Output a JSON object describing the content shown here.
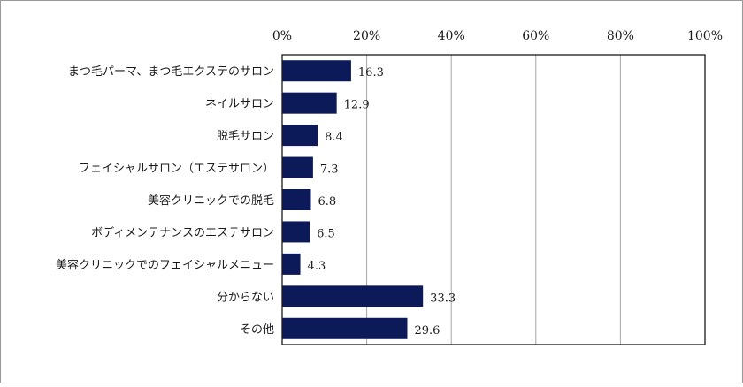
{
  "chart_data": {
    "type": "bar",
    "orientation": "horizontal",
    "title": "",
    "xlabel": "",
    "ylabel": "",
    "xlim": [
      0,
      100
    ],
    "x_ticks": [
      0,
      20,
      40,
      60,
      80,
      100
    ],
    "x_tick_labels": [
      "0%",
      "20%",
      "40%",
      "60%",
      "80%",
      "100%"
    ],
    "grid": true,
    "legend": "none",
    "bar_color": "#0d1a5a",
    "categories": [
      "まつ毛パーマ、まつ毛エクステのサロン",
      "ネイルサロン",
      "脱毛サロン",
      "フェイシャルサロン（エステサロン）",
      "美容クリニックでの脱毛",
      "ボディメンテナンスのエステサロン",
      "美容クリニックでのフェイシャルメニュー",
      "分からない",
      "その他"
    ],
    "values": [
      16.3,
      12.9,
      8.4,
      7.3,
      6.8,
      6.5,
      4.3,
      33.3,
      29.6
    ],
    "data_labels": [
      "16.3",
      "12.9",
      "8.4",
      "7.3",
      "6.8",
      "6.5",
      "4.3",
      "33.3",
      "29.6"
    ]
  }
}
